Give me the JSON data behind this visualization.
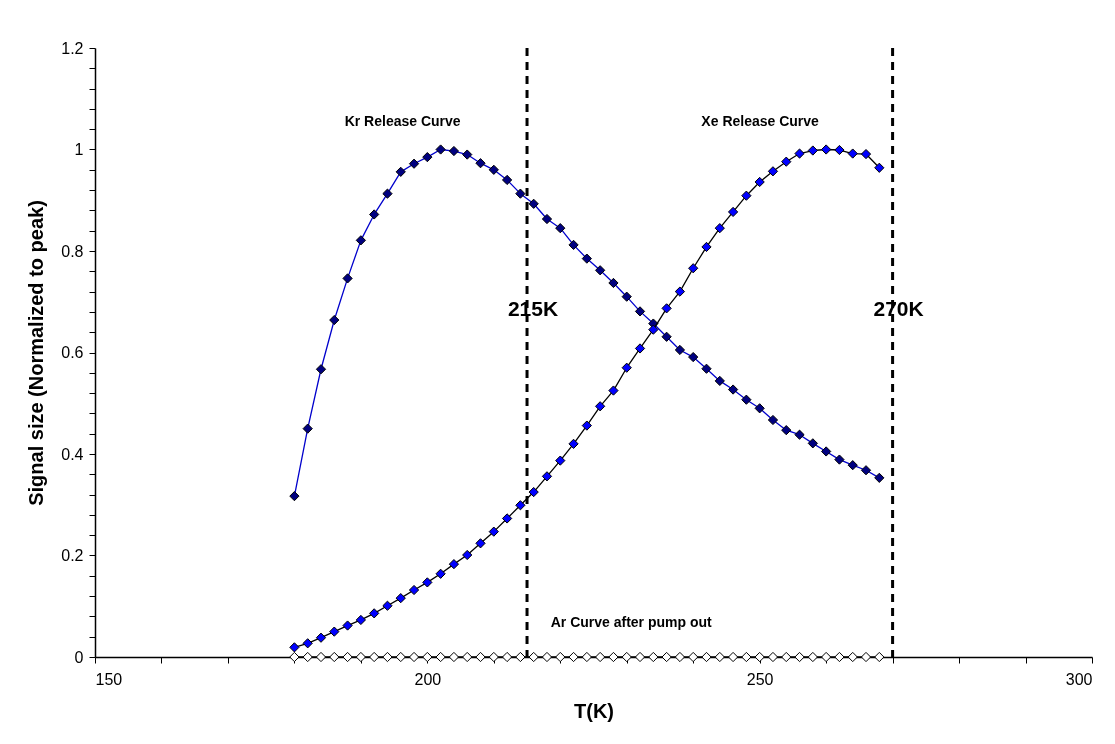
{
  "chart_data": {
    "type": "line",
    "xlabel": "T(K)",
    "ylabel": "Signal size (Normalized to peak)",
    "x": [
      180,
      182,
      184,
      186,
      188,
      190,
      192,
      194,
      196,
      198,
      200,
      202,
      204,
      206,
      208,
      210,
      212,
      214,
      216,
      218,
      220,
      222,
      224,
      226,
      228,
      230,
      232,
      234,
      236,
      238,
      240,
      242,
      244,
      246,
      248,
      250,
      252,
      254,
      256,
      258,
      260,
      262,
      264,
      266,
      268
    ],
    "series": [
      {
        "name": "Kr Release Curve",
        "color": "#000080",
        "values": [
          0.317,
          0.45,
          0.567,
          0.664,
          0.746,
          0.821,
          0.872,
          0.913,
          0.956,
          0.972,
          0.985,
          1.0,
          0.997,
          0.99,
          0.973,
          0.96,
          0.94,
          0.913,
          0.893,
          0.863,
          0.845,
          0.812,
          0.785,
          0.762,
          0.737,
          0.71,
          0.681,
          0.657,
          0.631,
          0.605,
          0.591,
          0.568,
          0.544,
          0.527,
          0.507,
          0.49,
          0.467,
          0.447,
          0.438,
          0.421,
          0.405,
          0.389,
          0.378,
          0.368,
          0.353
        ]
      },
      {
        "name": "Xe Release Curve",
        "color": "#0000ff",
        "values": [
          0.019,
          0.027,
          0.038,
          0.05,
          0.062,
          0.073,
          0.086,
          0.101,
          0.116,
          0.132,
          0.147,
          0.164,
          0.183,
          0.201,
          0.224,
          0.247,
          0.273,
          0.299,
          0.325,
          0.356,
          0.387,
          0.42,
          0.456,
          0.494,
          0.525,
          0.57,
          0.608,
          0.645,
          0.687,
          0.72,
          0.766,
          0.808,
          0.845,
          0.877,
          0.909,
          0.936,
          0.957,
          0.976,
          0.992,
          0.998,
          1.0,
          0.999,
          0.992,
          0.991,
          0.964
        ]
      },
      {
        "name": "Ar Curve after pump out",
        "color": "#ffffff",
        "values": [
          0,
          0,
          0,
          0,
          0,
          0,
          0,
          0,
          0,
          0,
          0,
          0,
          0,
          0,
          0,
          0,
          0,
          0,
          0,
          0,
          0,
          0,
          0,
          0,
          0,
          0,
          0,
          0,
          0,
          0,
          0,
          0,
          0,
          0,
          0,
          0,
          0,
          0,
          0,
          0,
          0,
          0,
          0,
          0,
          0
        ]
      }
    ],
    "xlim": [
      150,
      300
    ],
    "xticks": [
      150,
      {
        "value": 160,
        "label": null
      },
      {
        "value": 170,
        "label": null
      },
      {
        "value": 180,
        "label": null
      },
      {
        "value": 190,
        "label": null
      },
      200,
      {
        "value": 210,
        "label": null
      },
      {
        "value": 220,
        "label": null
      },
      {
        "value": 230,
        "label": null
      },
      {
        "value": 240,
        "label": null
      },
      250,
      {
        "value": 260,
        "label": null
      },
      {
        "value": 270,
        "label": null
      },
      {
        "value": 280,
        "label": null
      },
      {
        "value": 290,
        "label": null
      },
      300
    ],
    "ylim": [
      0,
      1.2
    ],
    "yticks": [
      0,
      {
        "value": 0.04,
        "label": null
      },
      {
        "value": 0.08,
        "label": null
      },
      {
        "value": 0.12,
        "label": null
      },
      {
        "value": 0.16,
        "label": null
      },
      0.2,
      {
        "value": 0.24,
        "label": null
      },
      {
        "value": 0.28,
        "label": null
      },
      {
        "value": 0.32,
        "label": null
      },
      {
        "value": 0.36,
        "label": null
      },
      0.4,
      {
        "value": 0.44,
        "label": null
      },
      {
        "value": 0.48,
        "label": null
      },
      {
        "value": 0.52,
        "label": null
      },
      {
        "value": 0.56,
        "label": null
      },
      0.6,
      {
        "value": 0.64,
        "label": null
      },
      {
        "value": 0.68,
        "label": null
      },
      {
        "value": 0.72,
        "label": null
      },
      {
        "value": 0.76,
        "label": null
      },
      0.8,
      {
        "value": 0.84,
        "label": null
      },
      {
        "value": 0.88,
        "label": null
      },
      {
        "value": 0.92,
        "label": null
      },
      {
        "value": 0.96,
        "label": null
      },
      1,
      {
        "value": 1.04,
        "label": null
      },
      {
        "value": 1.08,
        "label": null
      },
      {
        "value": 1.12,
        "label": null
      },
      {
        "value": 1.16,
        "label": null
      },
      1.2
    ],
    "ref_lines": [
      {
        "axis": "x",
        "value": 215,
        "label": "215K",
        "color": "#000000",
        "line_style": "dashed"
      },
      {
        "axis": "x",
        "value": 270,
        "label": "270K",
        "color": "#000000",
        "line_style": "dashed"
      }
    ],
    "marker": "diamond",
    "line_style": "solid",
    "grid": false
  }
}
